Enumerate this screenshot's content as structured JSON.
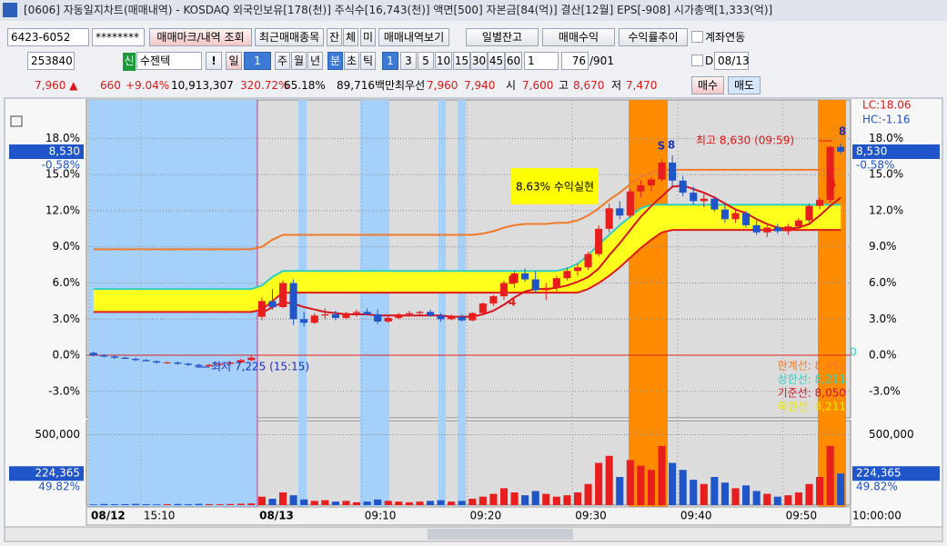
{
  "window": {
    "title": "[0606] 자동일지차트(매매내역) - KOSDAQ 외국인보유[178(천)] 주식수[16,743(천)] 액면[500] 자본금[84(억)] 결산[12월] EPS[-908] 시가총액[1,333(억)]"
  },
  "toolbar1": {
    "account": "6423-6052",
    "password": "********",
    "buttons": [
      "매매마크/내역 조회",
      "최근매매종목",
      "잔",
      "체",
      "미",
      "매매내역보기",
      "일별잔고",
      "매매수익",
      "수익률추이"
    ],
    "checkbox": "계좌연동"
  },
  "toolbar2": {
    "code": "253840",
    "market": "신",
    "name": "수젠텍",
    "alert": "!",
    "periods": [
      "일",
      "1",
      "주",
      "월",
      "년",
      "분",
      "초",
      "틱"
    ],
    "intervals": [
      "1",
      "3",
      "5",
      "10",
      "15",
      "30",
      "45",
      "60"
    ],
    "multiplier": "1",
    "count": "76",
    "total": "/901",
    "date_check": "D",
    "date": "08/13"
  },
  "quote": {
    "items": [
      "7,960 ▲",
      "660",
      "+9.04%",
      "10,913,307",
      "320.72%",
      "65.18%",
      "89,716백만",
      "최우선",
      "7,960",
      "7,940",
      "시",
      "7,600",
      "고",
      "8,670",
      "저",
      "7,470"
    ],
    "buy": "매수",
    "sell": "매도"
  },
  "chart_data": [
    {
      "type": "candlestick",
      "categories": [
        "08/12",
        null,
        null,
        null,
        null,
        "15:10",
        null,
        null,
        null,
        null,
        null,
        null,
        null,
        null,
        null,
        null,
        "08/13",
        null,
        null,
        null,
        null,
        null,
        null,
        null,
        null,
        null,
        "09:10",
        null,
        null,
        null,
        null,
        null,
        null,
        null,
        null,
        null,
        "09:20",
        null,
        null,
        null,
        null,
        null,
        null,
        null,
        null,
        null,
        "09:30",
        null,
        null,
        null,
        null,
        null,
        null,
        null,
        null,
        null,
        "09:40",
        null,
        null,
        null,
        null,
        null,
        null,
        null,
        null,
        null,
        "09:50",
        null,
        null,
        null,
        null,
        null
      ],
      "open": [
        0.2,
        0,
        -0.1,
        -0.2,
        -0.3,
        -0.4,
        -0.5,
        -0.6,
        -0.6,
        -0.7,
        -0.8,
        -0.9,
        -0.8,
        -0.7,
        -0.6,
        -0.4,
        3.2,
        4.5,
        4.0,
        6.0,
        3.0,
        2.7,
        3.3,
        3.4,
        3.1,
        3.5,
        3.6,
        3.4,
        2.8,
        3.1,
        3.4,
        3.5,
        3.6,
        3.3,
        3.0,
        3.2,
        2.9,
        3.5,
        4.3,
        4.9,
        6.0,
        6.8,
        6.3,
        5.4,
        5.6,
        6.4,
        7.0,
        7.3,
        8.4,
        10.5,
        12.2,
        11.6,
        13.6,
        14.1,
        14.6,
        16.0,
        14.5,
        13.5,
        12.8,
        13.0,
        12.1,
        11.3,
        11.8,
        10.8,
        10.2,
        10.6,
        10.3,
        10.7,
        11.2,
        12.4,
        12.9,
        17.3
      ],
      "high": [
        0.3,
        0.1,
        0,
        -0.1,
        -0.2,
        -0.3,
        -0.4,
        -0.5,
        -0.5,
        -0.6,
        -0.7,
        -0.7,
        -0.6,
        -0.5,
        -0.3,
        0,
        4.8,
        5.5,
        6.2,
        6.3,
        3.6,
        3.5,
        3.9,
        3.7,
        3.6,
        3.8,
        3.9,
        3.8,
        3.3,
        3.5,
        3.7,
        3.7,
        3.8,
        3.5,
        3.4,
        3.4,
        3.6,
        4.4,
        5.0,
        6.2,
        7.0,
        7.2,
        7.0,
        6.0,
        6.6,
        7.3,
        7.6,
        8.6,
        10.8,
        12.6,
        12.8,
        13.8,
        14.5,
        14.8,
        16.3,
        16.6,
        14.9,
        14.0,
        13.4,
        13.2,
        12.5,
        12.2,
        12.0,
        11.2,
        10.8,
        10.9,
        10.9,
        11.4,
        12.6,
        13.1,
        17.4,
        17.6
      ],
      "low": [
        -0.1,
        -0.2,
        -0.3,
        -0.3,
        -0.5,
        -0.5,
        -0.7,
        -0.7,
        -0.8,
        -0.9,
        -1.0,
        -1.0,
        -0.9,
        -0.8,
        -0.7,
        -0.5,
        2.9,
        3.8,
        3.9,
        2.5,
        2.4,
        2.6,
        3.0,
        2.9,
        3.0,
        3.2,
        3.3,
        2.6,
        2.7,
        3.0,
        3.2,
        3.3,
        3.2,
        2.8,
        2.9,
        2.8,
        2.8,
        3.4,
        4.1,
        4.6,
        5.6,
        6.1,
        5.2,
        4.6,
        5.3,
        6.2,
        6.6,
        7.1,
        8.2,
        10.2,
        11.3,
        11.4,
        13.1,
        13.6,
        14.4,
        14.0,
        13.2,
        12.5,
        12.3,
        11.9,
        11.0,
        11.0,
        10.6,
        10.0,
        9.8,
        10.1,
        10.0,
        10.5,
        11.0,
        12.1,
        12.7,
        16.7
      ],
      "close": [
        0.0,
        -0.1,
        -0.2,
        -0.3,
        -0.4,
        -0.5,
        -0.6,
        -0.6,
        -0.7,
        -0.8,
        -0.9,
        -0.8,
        -0.7,
        -0.6,
        -0.4,
        -0.2,
        4.5,
        4.0,
        6.0,
        3.0,
        2.7,
        3.3,
        3.4,
        3.1,
        3.5,
        3.6,
        3.4,
        2.8,
        3.1,
        3.4,
        3.5,
        3.6,
        3.3,
        3.0,
        3.2,
        2.9,
        3.5,
        4.3,
        4.9,
        6.0,
        6.8,
        6.3,
        5.4,
        5.6,
        6.4,
        7.0,
        7.3,
        8.4,
        10.5,
        12.2,
        11.6,
        13.6,
        14.1,
        14.6,
        16.0,
        14.5,
        13.5,
        12.8,
        13.0,
        12.1,
        11.3,
        11.8,
        10.8,
        10.2,
        10.6,
        10.3,
        10.7,
        11.2,
        12.4,
        12.9,
        17.3,
        16.9
      ],
      "up_color": "#e81e1e",
      "down_color": "#1f55c8",
      "overlays": [
        {
          "color": "#f07a28",
          "values": [
            8.8,
            8.8,
            8.8,
            8.8,
            8.8,
            8.8,
            8.8,
            8.8,
            8.8,
            8.8,
            8.8,
            8.8,
            8.8,
            8.8,
            8.8,
            8.8,
            9.0,
            9.6,
            10.0,
            10.0,
            10.0,
            10.0,
            10.0,
            10.0,
            10.0,
            10.0,
            10.0,
            10.0,
            10.0,
            10.0,
            10.0,
            10.0,
            10.0,
            10.0,
            10.0,
            10.0,
            10.0,
            10.1,
            10.3,
            10.6,
            10.8,
            10.9,
            10.9,
            10.9,
            11.0,
            11.0,
            11.2,
            11.6,
            12.2,
            12.9,
            13.5,
            14.2,
            14.8,
            15.2,
            15.4,
            15.4,
            15.4,
            15.4,
            15.4,
            15.4,
            15.4,
            15.4,
            15.4,
            15.4,
            15.4,
            15.4,
            15.4,
            15.4,
            15.4,
            15.4,
            15.4,
            15.4
          ]
        },
        {
          "color": "#d4141e",
          "values": [
            null,
            null,
            null,
            null,
            null,
            null,
            null,
            null,
            null,
            null,
            null,
            null,
            null,
            null,
            null,
            null,
            3.5,
            4.0,
            4.4,
            4.3,
            4.0,
            3.8,
            3.6,
            3.5,
            3.4,
            3.4,
            3.4,
            3.3,
            3.3,
            3.3,
            3.3,
            3.3,
            3.3,
            3.3,
            3.2,
            3.2,
            3.2,
            3.4,
            3.7,
            4.2,
            4.8,
            5.3,
            5.5,
            5.5,
            5.6,
            5.8,
            6.1,
            6.5,
            7.2,
            8.3,
            9.3,
            10.4,
            11.5,
            12.4,
            13.2,
            14.0,
            14.1,
            13.8,
            13.5,
            13.1,
            12.6,
            12.1,
            11.8,
            11.3,
            10.9,
            10.6,
            10.5,
            10.6,
            10.9,
            11.6,
            12.4,
            13.1
          ]
        }
      ],
      "band": {
        "color": "#ffff1e",
        "upper_color": "#2ecfc0",
        "lower_color": "#e01a1a",
        "upper": [
          5.5,
          5.5,
          5.5,
          5.5,
          5.5,
          5.5,
          5.5,
          5.5,
          5.5,
          5.5,
          5.5,
          5.5,
          5.5,
          5.5,
          5.5,
          5.5,
          5.8,
          6.5,
          7.0,
          7.0,
          7.0,
          7.0,
          7.0,
          7.0,
          7.0,
          7.0,
          7.0,
          7.0,
          7.0,
          7.0,
          7.0,
          7.0,
          7.0,
          7.0,
          7.0,
          7.0,
          7.0,
          7.0,
          7.0,
          7.0,
          7.0,
          7.0,
          7.0,
          7.0,
          7.0,
          7.2,
          7.6,
          8.3,
          9.2,
          10.0,
          10.8,
          11.5,
          12.2,
          12.5,
          12.5,
          12.5,
          12.5,
          12.5,
          12.5,
          12.5,
          12.5,
          12.5,
          12.5,
          12.5,
          12.5,
          12.5,
          12.5,
          12.5,
          12.5,
          12.5,
          12.5,
          12.5
        ],
        "lower": [
          3.6,
          3.6,
          3.6,
          3.6,
          3.6,
          3.6,
          3.6,
          3.6,
          3.6,
          3.6,
          3.6,
          3.6,
          3.6,
          3.6,
          3.6,
          3.6,
          3.8,
          4.5,
          5.2,
          5.2,
          5.2,
          5.2,
          5.2,
          5.2,
          5.2,
          5.2,
          5.2,
          5.2,
          5.2,
          5.2,
          5.2,
          5.2,
          5.2,
          5.2,
          5.2,
          5.2,
          5.2,
          5.2,
          5.2,
          5.2,
          5.2,
          5.2,
          5.2,
          5.2,
          5.2,
          5.2,
          5.2,
          5.5,
          6.0,
          6.6,
          7.3,
          8.1,
          8.9,
          9.6,
          10.2,
          10.4,
          10.4,
          10.4,
          10.4,
          10.4,
          10.4,
          10.4,
          10.4,
          10.4,
          10.4,
          10.4,
          10.4,
          10.4,
          10.4,
          10.4,
          10.4,
          10.4
        ]
      },
      "ylim": [
        -5.2,
        21.2
      ],
      "yticks": [
        {
          "value": 18,
          "label": "18.0%"
        },
        {
          "value": 15,
          "label": "15.0%"
        },
        {
          "value": 12,
          "label": "12.0%"
        },
        {
          "value": 9,
          "label": "9.0%"
        },
        {
          "value": 6,
          "label": "6.0%"
        },
        {
          "value": 3,
          "label": "3.0%"
        },
        {
          "value": 0,
          "label": "0.0%"
        },
        {
          "value": -3,
          "label": "-3.0%"
        }
      ],
      "grid": true,
      "zero_line_color": "#e02020",
      "current": {
        "value": 16.9,
        "label": "8,530",
        "change": "-0.58%"
      },
      "annotations": {
        "lc": "LC:18.06",
        "hc": "HC:-1.16",
        "high": "최고 8,630 (09:59)",
        "low": "최저 7,225 (15:15)",
        "profit": "8.63% 수익실현",
        "lines": [
          "한계선: 8,453",
          "상한선: 8,211",
          "기준선: 8,050",
          "하한선: 8,211"
        ],
        "marks": [
          "S",
          "8",
          "B",
          "4",
          "8",
          "4",
          "0"
        ]
      },
      "cursor_time": "10:00:00"
    },
    {
      "type": "bar",
      "values": [
        5000,
        8000,
        6000,
        7000,
        9000,
        6000,
        5000,
        7000,
        8000,
        6000,
        9000,
        7000,
        6000,
        8000,
        10000,
        12000,
        60000,
        45000,
        90000,
        70000,
        40000,
        30000,
        35000,
        25000,
        30000,
        20000,
        25000,
        40000,
        30000,
        25000,
        20000,
        25000,
        30000,
        35000,
        25000,
        30000,
        45000,
        60000,
        80000,
        120000,
        90000,
        70000,
        100000,
        80000,
        60000,
        70000,
        90000,
        150000,
        300000,
        350000,
        200000,
        320000,
        280000,
        250000,
        420000,
        300000,
        250000,
        180000,
        150000,
        200000,
        160000,
        120000,
        140000,
        100000,
        80000,
        60000,
        70000,
        90000,
        150000,
        200000,
        420000,
        224365
      ],
      "ylim": [
        0,
        600000
      ],
      "yticks": [
        {
          "value": 500000,
          "label": "500,000"
        }
      ],
      "grid": true,
      "current": {
        "value": 224365,
        "label": "224,365",
        "ratio": "49.82%"
      }
    }
  ]
}
